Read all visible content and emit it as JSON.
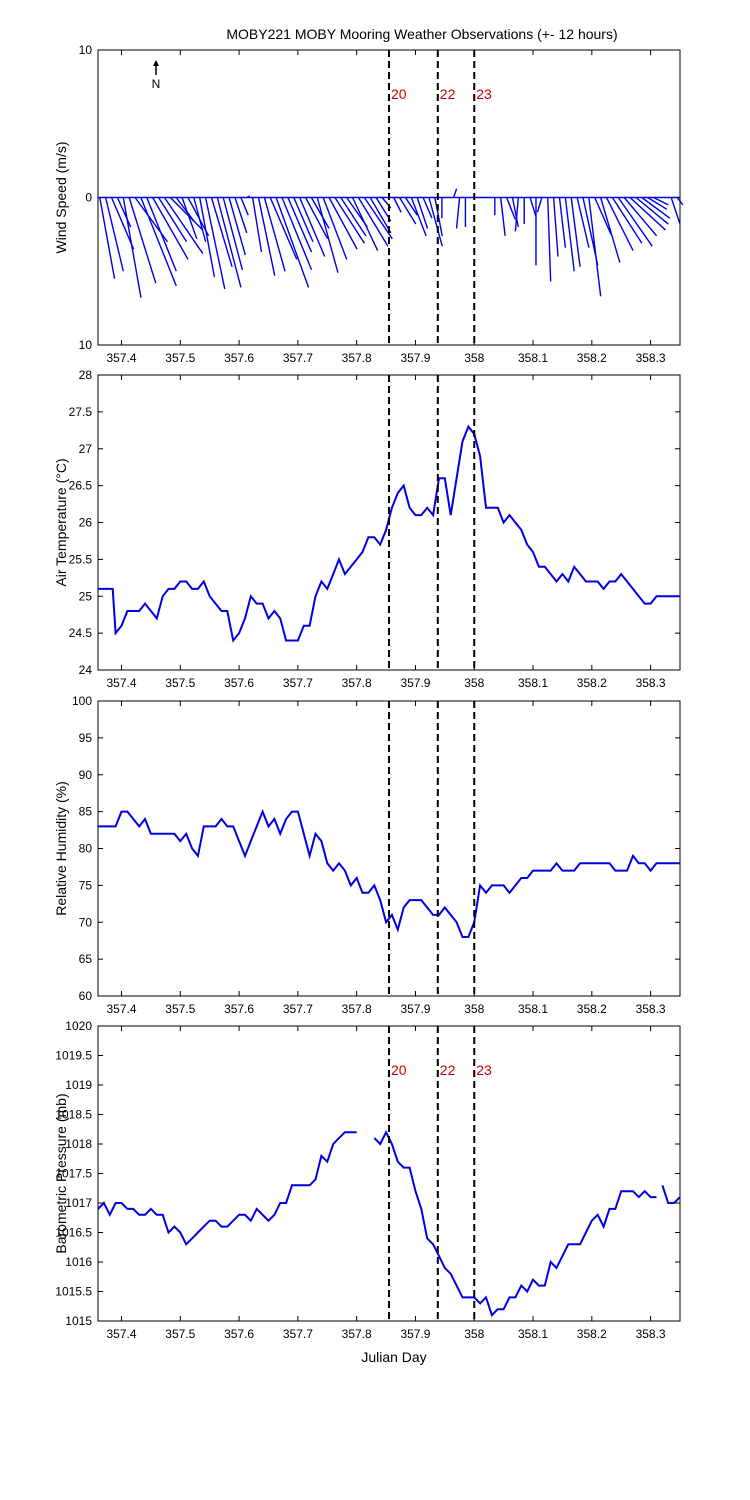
{
  "title": "MOBY221 MOBY Mooring Weather Observations (+- 12 hours)",
  "colors": {
    "series": "#0000e0",
    "event": "#cc0000",
    "axis": "#000000"
  },
  "north_label": "N",
  "xlabel": "Julian Day",
  "x_ticks": [
    "357.4",
    "357.5",
    "357.6",
    "357.7",
    "357.8",
    "357.9",
    "358",
    "358.1",
    "358.2",
    "358.3"
  ],
  "events": [
    {
      "label": "20",
      "x": 357.855
    },
    {
      "label": "22",
      "x": 357.938
    },
    {
      "label": "23",
      "x": 358.0
    }
  ],
  "chart_data": [
    {
      "type": "line",
      "subtype": "wind-stick",
      "ylabel": "Wind Speed (m/s)",
      "xlim": [
        357.36,
        358.35
      ],
      "ylim": [
        -10,
        10
      ],
      "y_ticks": [
        "10",
        "0",
        "10"
      ],
      "events_labelled": true,
      "wind_sticks": [
        {
          "x": 357.363,
          "u": 1.0,
          "v": -5.5
        },
        {
          "x": 357.373,
          "u": 1.2,
          "v": -5.0
        },
        {
          "x": 357.383,
          "u": 1.5,
          "v": -3.5
        },
        {
          "x": 357.393,
          "u": 0.9,
          "v": -2.0
        },
        {
          "x": 357.403,
          "u": 1.2,
          "v": -6.8
        },
        {
          "x": 357.413,
          "u": 1.8,
          "v": -5.8
        },
        {
          "x": 357.423,
          "u": 2.2,
          "v": -3.0
        },
        {
          "x": 357.433,
          "u": 2.4,
          "v": -6.0
        },
        {
          "x": 357.443,
          "u": 2.0,
          "v": -5.0
        },
        {
          "x": 357.453,
          "u": 2.4,
          "v": -4.2
        },
        {
          "x": 357.463,
          "u": 1.9,
          "v": -3.0
        },
        {
          "x": 357.473,
          "u": 2.6,
          "v": -3.8
        },
        {
          "x": 357.483,
          "u": 2.2,
          "v": -2.2
        },
        {
          "x": 357.493,
          "u": 1.2,
          "v": -1.6
        },
        {
          "x": 357.503,
          "u": 1.0,
          "v": -2.8
        },
        {
          "x": 357.513,
          "u": 1.4,
          "v": -2.6
        },
        {
          "x": 357.523,
          "u": 0.8,
          "v": -3.0
        },
        {
          "x": 357.533,
          "u": 1.0,
          "v": -5.4
        },
        {
          "x": 357.543,
          "u": 1.3,
          "v": -6.2
        },
        {
          "x": 357.553,
          "u": 1.4,
          "v": -4.7
        },
        {
          "x": 357.563,
          "u": 1.6,
          "v": -6.1
        },
        {
          "x": 357.573,
          "u": 1.3,
          "v": -4.9
        },
        {
          "x": 357.583,
          "u": 1.1,
          "v": -3.9
        },
        {
          "x": 357.593,
          "u": 0.8,
          "v": -2.4
        },
        {
          "x": 357.603,
          "u": 0.5,
          "v": -1.2
        },
        {
          "x": 357.613,
          "u": 0.2,
          "v": 0.1
        },
        {
          "x": 357.623,
          "u": 0.6,
          "v": -3.7
        },
        {
          "x": 357.633,
          "u": 1.1,
          "v": -5.3
        },
        {
          "x": 357.643,
          "u": 1.4,
          "v": -5.0
        },
        {
          "x": 357.653,
          "u": 1.8,
          "v": -4.2
        },
        {
          "x": 357.663,
          "u": 2.2,
          "v": -6.1
        },
        {
          "x": 357.673,
          "u": 2.0,
          "v": -4.9
        },
        {
          "x": 357.683,
          "u": 1.6,
          "v": -3.7
        },
        {
          "x": 357.693,
          "u": 1.3,
          "v": -3.0
        },
        {
          "x": 357.703,
          "u": 1.7,
          "v": -4.0
        },
        {
          "x": 357.713,
          "u": 1.5,
          "v": -2.8
        },
        {
          "x": 357.723,
          "u": 1.2,
          "v": -2.1
        },
        {
          "x": 357.733,
          "u": 1.4,
          "v": -5.1
        },
        {
          "x": 357.743,
          "u": 1.6,
          "v": -4.2
        },
        {
          "x": 357.753,
          "u": 1.9,
          "v": -3.5
        },
        {
          "x": 357.763,
          "u": 2.0,
          "v": -3.1
        },
        {
          "x": 357.773,
          "u": 1.7,
          "v": -2.6
        },
        {
          "x": 357.783,
          "u": 1.4,
          "v": -2.0
        },
        {
          "x": 357.793,
          "u": 1.7,
          "v": -3.6
        },
        {
          "x": 357.803,
          "u": 2.0,
          "v": -3.3
        },
        {
          "x": 357.813,
          "u": 1.9,
          "v": -2.8
        },
        {
          "x": 357.823,
          "u": 1.4,
          "v": -2.4
        },
        {
          "x": 357.833,
          "u": 1.0,
          "v": -1.6
        },
        {
          "x": 357.843,
          "u": 0.6,
          "v": -0.7
        },
        {
          "x": 357.863,
          "u": 0.5,
          "v": -1.0
        },
        {
          "x": 357.873,
          "u": 1.1,
          "v": -1.8
        },
        {
          "x": 357.883,
          "u": 0.8,
          "v": -1.2
        },
        {
          "x": 357.893,
          "u": 1.0,
          "v": -2.6
        },
        {
          "x": 357.903,
          "u": 0.7,
          "v": -2.1
        },
        {
          "x": 357.913,
          "u": 0.6,
          "v": -1.4
        },
        {
          "x": 357.923,
          "u": 0.9,
          "v": -3.3
        },
        {
          "x": 357.933,
          "u": 0.5,
          "v": -2.6
        },
        {
          "x": 357.945,
          "u": 0.0,
          "v": -1.4
        },
        {
          "x": 357.965,
          "u": 0.2,
          "v": 0.6
        },
        {
          "x": 357.975,
          "u": -0.2,
          "v": -2.1
        },
        {
          "x": 357.985,
          "u": 0.0,
          "v": -2.0
        },
        {
          "x": 358.035,
          "u": 0.0,
          "v": -1.2
        },
        {
          "x": 358.045,
          "u": 0.3,
          "v": -2.6
        },
        {
          "x": 358.055,
          "u": 0.6,
          "v": -1.5
        },
        {
          "x": 358.065,
          "u": 0.4,
          "v": -2.0
        },
        {
          "x": 358.075,
          "u": -0.2,
          "v": -2.3
        },
        {
          "x": 358.085,
          "u": 0.0,
          "v": -1.8
        },
        {
          "x": 358.095,
          "u": 0.4,
          "v": -1.3
        },
        {
          "x": 358.105,
          "u": 0.0,
          "v": -4.6
        },
        {
          "x": 358.115,
          "u": -0.3,
          "v": -1.0
        },
        {
          "x": 358.125,
          "u": 0.2,
          "v": -5.7
        },
        {
          "x": 358.135,
          "u": 0.3,
          "v": -4.0
        },
        {
          "x": 358.145,
          "u": 0.4,
          "v": -3.4
        },
        {
          "x": 358.155,
          "u": 0.6,
          "v": -5.0
        },
        {
          "x": 358.165,
          "u": 0.6,
          "v": -4.7
        },
        {
          "x": 358.175,
          "u": 0.8,
          "v": -3.4
        },
        {
          "x": 358.185,
          "u": 1.0,
          "v": -4.6
        },
        {
          "x": 358.195,
          "u": 0.8,
          "v": -6.7
        },
        {
          "x": 358.205,
          "u": 1.1,
          "v": -2.5
        },
        {
          "x": 358.215,
          "u": 1.3,
          "v": -4.4
        },
        {
          "x": 358.225,
          "u": 1.8,
          "v": -3.6
        },
        {
          "x": 358.235,
          "u": 2.0,
          "v": -3.1
        },
        {
          "x": 358.245,
          "u": 2.3,
          "v": -3.3
        },
        {
          "x": 358.255,
          "u": 2.2,
          "v": -2.6
        },
        {
          "x": 358.265,
          "u": 2.4,
          "v": -2.2
        },
        {
          "x": 358.275,
          "u": 2.2,
          "v": -1.8
        },
        {
          "x": 358.285,
          "u": 1.9,
          "v": -1.4
        },
        {
          "x": 358.295,
          "u": 1.3,
          "v": -0.8
        },
        {
          "x": 358.305,
          "u": 1.0,
          "v": -0.5
        },
        {
          "x": 358.335,
          "u": 0.6,
          "v": -1.8
        },
        {
          "x": 358.345,
          "u": 0.4,
          "v": -0.5
        }
      ]
    },
    {
      "type": "line",
      "ylabel": "Air Temperature (°C)",
      "xlim": [
        357.36,
        358.35
      ],
      "ylim": [
        24,
        28
      ],
      "y_ticks": [
        "24",
        "24.5",
        "25",
        "25.5",
        "26",
        "26.5",
        "27",
        "27.5",
        "28"
      ],
      "events_labelled": false,
      "x": [
        357.36,
        357.37,
        357.38,
        357.385,
        357.39,
        357.4,
        357.41,
        357.42,
        357.43,
        357.44,
        357.45,
        357.46,
        357.47,
        357.48,
        357.49,
        357.5,
        357.51,
        357.52,
        357.53,
        357.54,
        357.55,
        357.56,
        357.57,
        357.58,
        357.59,
        357.6,
        357.61,
        357.62,
        357.63,
        357.64,
        357.65,
        357.66,
        357.67,
        357.68,
        357.69,
        357.7,
        357.71,
        357.72,
        357.73,
        357.74,
        357.75,
        357.76,
        357.77,
        357.78,
        357.79,
        357.8,
        357.81,
        357.82,
        357.83,
        357.84,
        357.85,
        357.86,
        357.87,
        357.88,
        357.89,
        357.9,
        357.91,
        357.92,
        357.93,
        357.94,
        357.95,
        357.96,
        357.97,
        357.98,
        357.99,
        358.0,
        358.01,
        358.02,
        358.025,
        358.03,
        358.04,
        358.05,
        358.06,
        358.07,
        358.08,
        358.09,
        358.1,
        358.11,
        358.12,
        358.13,
        358.14,
        358.15,
        358.16,
        358.17,
        358.18,
        358.19,
        358.2,
        358.21,
        358.22,
        358.23,
        358.24,
        358.25,
        358.26,
        358.27,
        358.28,
        358.29,
        358.3,
        358.31,
        358.32,
        358.33,
        358.34,
        358.35
      ],
      "y": [
        25.1,
        25.1,
        25.1,
        25.1,
        24.5,
        24.6,
        24.8,
        24.8,
        24.8,
        24.9,
        24.8,
        24.7,
        25.0,
        25.1,
        25.1,
        25.2,
        25.2,
        25.1,
        25.1,
        25.2,
        25.0,
        24.9,
        24.8,
        24.8,
        24.4,
        24.5,
        24.7,
        25.0,
        24.9,
        24.9,
        24.7,
        24.8,
        24.7,
        24.4,
        24.4,
        24.4,
        24.6,
        24.6,
        25.0,
        25.2,
        25.1,
        25.3,
        25.5,
        25.3,
        25.4,
        25.5,
        25.6,
        25.8,
        25.8,
        25.7,
        25.9,
        26.2,
        26.4,
        26.5,
        26.2,
        26.1,
        26.1,
        26.2,
        26.1,
        26.6,
        26.6,
        26.1,
        26.6,
        27.1,
        27.3,
        27.2,
        26.9,
        26.2,
        26.2,
        26.2,
        26.2,
        26.0,
        26.1,
        26.0,
        25.9,
        25.7,
        25.6,
        25.4,
        25.4,
        25.3,
        25.2,
        25.3,
        25.2,
        25.4,
        25.3,
        25.2,
        25.2,
        25.2,
        25.1,
        25.2,
        25.2,
        25.3,
        25.2,
        25.1,
        25.0,
        24.9,
        24.9,
        25.0,
        25.0,
        25.0,
        25.0,
        25.0
      ]
    },
    {
      "type": "line",
      "ylabel": "Relative Humidity (%)",
      "xlim": [
        357.36,
        358.35
      ],
      "ylim": [
        60,
        100
      ],
      "y_ticks": [
        "60",
        "65",
        "70",
        "75",
        "80",
        "85",
        "90",
        "95",
        "100"
      ],
      "events_labelled": false,
      "x": [
        357.36,
        357.37,
        357.38,
        357.39,
        357.4,
        357.41,
        357.42,
        357.43,
        357.44,
        357.45,
        357.46,
        357.47,
        357.48,
        357.49,
        357.5,
        357.51,
        357.52,
        357.53,
        357.54,
        357.55,
        357.56,
        357.57,
        357.58,
        357.59,
        357.6,
        357.61,
        357.62,
        357.63,
        357.64,
        357.65,
        357.66,
        357.67,
        357.68,
        357.69,
        357.7,
        357.71,
        357.72,
        357.73,
        357.74,
        357.75,
        357.76,
        357.77,
        357.78,
        357.79,
        357.8,
        357.81,
        357.82,
        357.83,
        357.84,
        357.85,
        357.86,
        357.87,
        357.88,
        357.89,
        357.9,
        357.91,
        357.92,
        357.93,
        357.94,
        357.95,
        357.96,
        357.97,
        357.98,
        357.99,
        358.0,
        358.01,
        358.02,
        358.03,
        358.04,
        358.05,
        358.06,
        358.07,
        358.08,
        358.09,
        358.1,
        358.11,
        358.12,
        358.13,
        358.14,
        358.15,
        358.16,
        358.17,
        358.18,
        358.19,
        358.2,
        358.21,
        358.22,
        358.23,
        358.24,
        358.25,
        358.26,
        358.27,
        358.28,
        358.29,
        358.3,
        358.31,
        358.32,
        358.33,
        358.34,
        358.35
      ],
      "y": [
        83,
        83,
        83,
        83,
        85,
        85,
        84,
        83,
        84,
        82,
        82,
        82,
        82,
        82,
        81,
        82,
        80,
        79,
        83,
        83,
        83,
        84,
        83,
        83,
        81,
        79,
        81,
        83,
        85,
        83,
        84,
        82,
        84,
        85,
        85,
        82,
        79,
        82,
        81,
        78,
        77,
        78,
        77,
        75,
        76,
        74,
        74,
        75,
        73,
        70,
        71,
        69,
        72,
        73,
        73,
        73,
        72,
        71,
        71,
        72,
        71,
        70,
        68,
        68,
        70,
        75,
        74,
        75,
        75,
        75,
        74,
        75,
        76,
        76,
        77,
        77,
        77,
        77,
        78,
        77,
        77,
        77,
        78,
        78,
        78,
        78,
        78,
        78,
        77,
        77,
        77,
        79,
        78,
        78,
        77,
        78,
        78,
        78,
        78,
        78
      ]
    },
    {
      "type": "line",
      "ylabel": "Barometric Pressure (mb)",
      "xlim": [
        357.36,
        358.35
      ],
      "ylim": [
        1015,
        1020
      ],
      "y_ticks": [
        "1015",
        "1015.5",
        "1016",
        "1016.5",
        "1017",
        "1017.5",
        "1018",
        "1018.5",
        "1019",
        "1019.5",
        "1020"
      ],
      "events_labelled": true,
      "segments": [
        {
          "x": [
            357.36,
            357.37,
            357.38,
            357.39,
            357.4,
            357.41,
            357.42,
            357.43,
            357.44,
            357.45,
            357.46,
            357.47,
            357.48,
            357.49,
            357.5,
            357.51,
            357.52,
            357.53,
            357.54,
            357.55,
            357.56,
            357.57,
            357.58,
            357.59,
            357.6,
            357.61,
            357.62,
            357.63,
            357.64,
            357.65,
            357.66,
            357.67,
            357.68,
            357.69,
            357.7,
            357.71,
            357.72,
            357.73,
            357.74,
            357.75,
            357.76,
            357.77,
            357.78,
            357.79,
            357.8
          ],
          "y": [
            1016.9,
            1017.0,
            1016.8,
            1017.0,
            1017.0,
            1016.9,
            1016.9,
            1016.8,
            1016.8,
            1016.9,
            1016.8,
            1016.8,
            1016.5,
            1016.6,
            1016.5,
            1016.3,
            1016.4,
            1016.5,
            1016.6,
            1016.7,
            1016.7,
            1016.6,
            1016.6,
            1016.7,
            1016.8,
            1016.8,
            1016.7,
            1016.9,
            1016.8,
            1016.7,
            1016.8,
            1017.0,
            1017.0,
            1017.3,
            1017.3,
            1017.3,
            1017.3,
            1017.4,
            1017.8,
            1017.7,
            1018.0,
            1018.1,
            1018.2,
            1018.2,
            1018.2
          ]
        },
        {
          "x": [
            357.83,
            357.84,
            357.85,
            357.86,
            357.87,
            357.88,
            357.89,
            357.9,
            357.91,
            357.92,
            357.93,
            357.94,
            357.95,
            357.96,
            357.97,
            357.98,
            357.99,
            358.0,
            358.01,
            358.02,
            358.03,
            358.04,
            358.05,
            358.06,
            358.07,
            358.08,
            358.09,
            358.1,
            358.11,
            358.12,
            358.13,
            358.14,
            358.15,
            358.16,
            358.17,
            358.18,
            358.19,
            358.2,
            358.21,
            358.22,
            358.23,
            358.24,
            358.25,
            358.26,
            358.27,
            358.28,
            358.29,
            358.3,
            358.31
          ],
          "y": [
            1018.1,
            1018.0,
            1018.2,
            1018.0,
            1017.7,
            1017.6,
            1017.6,
            1017.2,
            1016.9,
            1016.4,
            1016.3,
            1016.1,
            1015.9,
            1015.8,
            1015.6,
            1015.4,
            1015.4,
            1015.4,
            1015.3,
            1015.4,
            1015.1,
            1015.2,
            1015.2,
            1015.4,
            1015.4,
            1015.6,
            1015.5,
            1015.7,
            1015.6,
            1015.6,
            1016.0,
            1015.9,
            1016.1,
            1016.3,
            1016.3,
            1016.3,
            1016.5,
            1016.7,
            1016.8,
            1016.6,
            1016.9,
            1016.9,
            1017.2,
            1017.2,
            1017.2,
            1017.1,
            1017.2,
            1017.1,
            1017.1
          ]
        },
        {
          "x": [
            358.32,
            358.33,
            358.34,
            358.35
          ],
          "y": [
            1017.3,
            1017.0,
            1017.0,
            1017.1
          ]
        }
      ]
    }
  ]
}
